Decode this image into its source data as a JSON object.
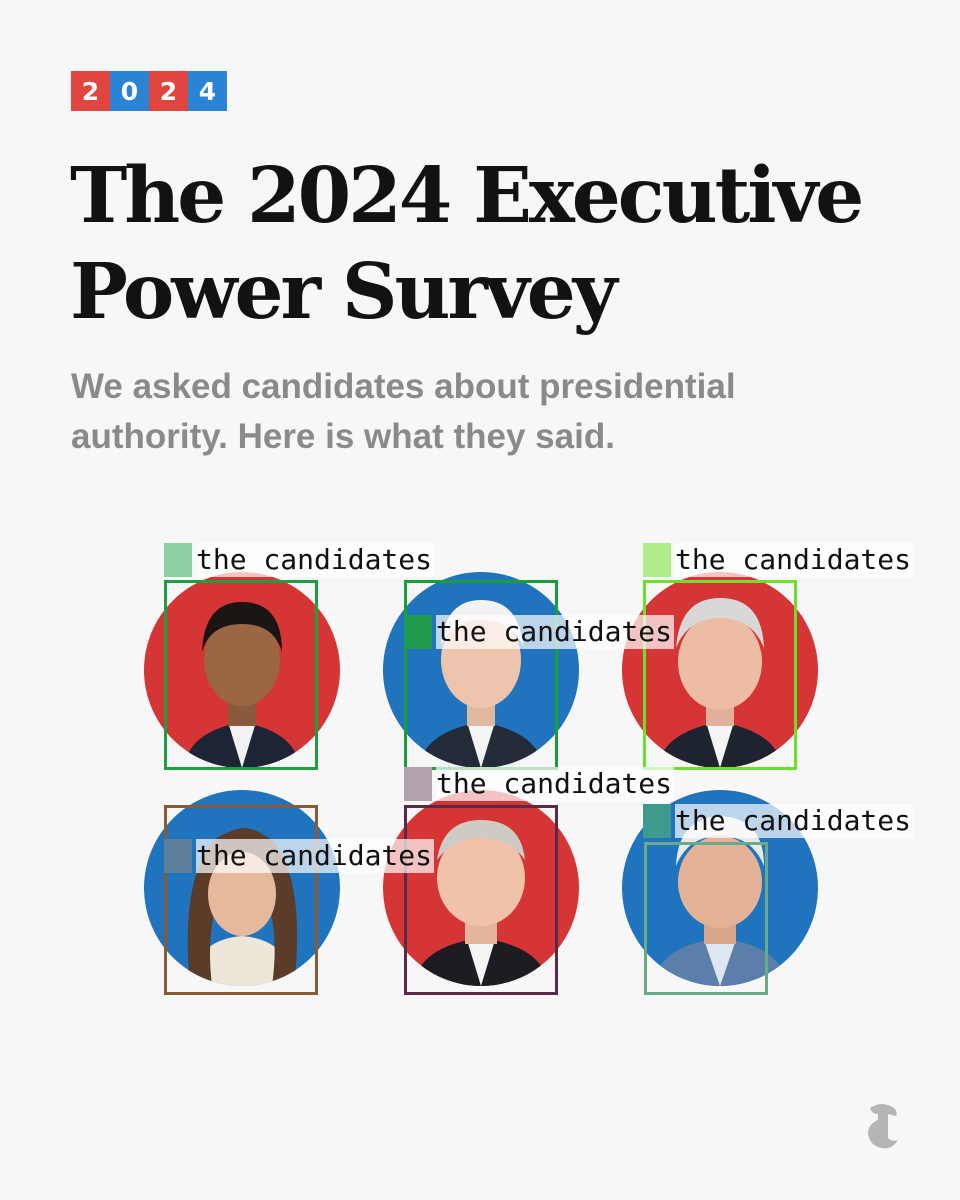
{
  "badge": {
    "digits": [
      "2",
      "0",
      "2",
      "4"
    ]
  },
  "header": {
    "title_line1": "The 2024 Executive",
    "title_line2": "Power Survey",
    "subtitle_line1": "We asked candidates about presidential",
    "subtitle_line2": "authority. Here is what they said."
  },
  "annotations": {
    "label": "the candidates"
  },
  "colors": {
    "red": "#d63535",
    "blue": "#1f74bd",
    "badge_red": "#e0463f",
    "badge_blue": "#2a84d6",
    "box_colors": [
      "#1e9e3f",
      "#1a9e3a",
      "#6ee02a",
      "#8a5a35",
      "#5a2a4a",
      "#6aaa88"
    ]
  },
  "portraits": [
    {
      "name": "candidate-1",
      "background": "red"
    },
    {
      "name": "candidate-2",
      "background": "blue"
    },
    {
      "name": "candidate-3",
      "background": "red"
    },
    {
      "name": "candidate-4",
      "background": "blue"
    },
    {
      "name": "candidate-5",
      "background": "red"
    },
    {
      "name": "candidate-6",
      "background": "blue"
    }
  ],
  "footer": {
    "logo_icon": "nyt-logo-icon"
  }
}
